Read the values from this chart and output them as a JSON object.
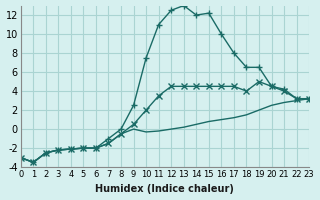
{
  "xlabel": "Humidex (Indice chaleur)",
  "background_color": "#d6f0ef",
  "grid_color": "#aad4d2",
  "line_color": "#1a6b66",
  "xlim": [
    0,
    23
  ],
  "ylim": [
    -4,
    13
  ],
  "yticks": [
    -4,
    -2,
    0,
    2,
    4,
    6,
    8,
    10,
    12
  ],
  "xticks": [
    0,
    1,
    2,
    3,
    4,
    5,
    6,
    7,
    8,
    9,
    10,
    11,
    12,
    13,
    14,
    15,
    16,
    17,
    18,
    19,
    20,
    21,
    22,
    23
  ],
  "series": [
    {
      "x": [
        0,
        1,
        2,
        3,
        4,
        5,
        6,
        7,
        8,
        9,
        10,
        11,
        12,
        13,
        14,
        15,
        16,
        17,
        18,
        19,
        20,
        21,
        22,
        23
      ],
      "y": [
        -3,
        -3.5,
        -2.5,
        -2.2,
        -2.1,
        -2.0,
        -2.0,
        -1.5,
        -0.5,
        0.0,
        -0.3,
        -0.2,
        0.0,
        0.2,
        0.5,
        0.8,
        1.0,
        1.2,
        1.5,
        2.0,
        2.5,
        2.8,
        3.0,
        3.2
      ],
      "style": "-",
      "marker": null,
      "linewidth": 1.0
    },
    {
      "x": [
        0,
        1,
        2,
        3,
        4,
        5,
        6,
        7,
        8,
        9,
        10,
        11,
        12,
        13,
        14,
        15,
        16,
        17,
        18,
        19,
        20,
        21,
        22,
        23
      ],
      "y": [
        -3,
        -3.5,
        -2.5,
        -2.2,
        -2.1,
        -2.0,
        -2.0,
        -1.5,
        -0.5,
        0.5,
        2.0,
        3.5,
        4.5,
        4.5,
        4.5,
        4.5,
        4.5,
        4.5,
        4.0,
        5.0,
        4.5,
        4.0,
        3.2,
        3.2
      ],
      "style": "-",
      "marker": "x",
      "linewidth": 1.0
    },
    {
      "x": [
        0,
        1,
        2,
        3,
        4,
        5,
        6,
        7,
        8,
        9,
        10,
        11,
        12,
        13,
        14,
        15,
        16,
        17,
        18,
        19,
        20,
        21,
        22,
        23
      ],
      "y": [
        -3,
        -3.5,
        -2.5,
        -2.2,
        -2.1,
        -2.0,
        -2.0,
        -1.0,
        0.0,
        2.5,
        7.5,
        11.0,
        12.5,
        13.0,
        12.0,
        12.2,
        10.0,
        8.0,
        6.5,
        6.5,
        4.5,
        4.2,
        3.2,
        3.2
      ],
      "style": "-",
      "marker": "+",
      "linewidth": 1.0
    }
  ]
}
